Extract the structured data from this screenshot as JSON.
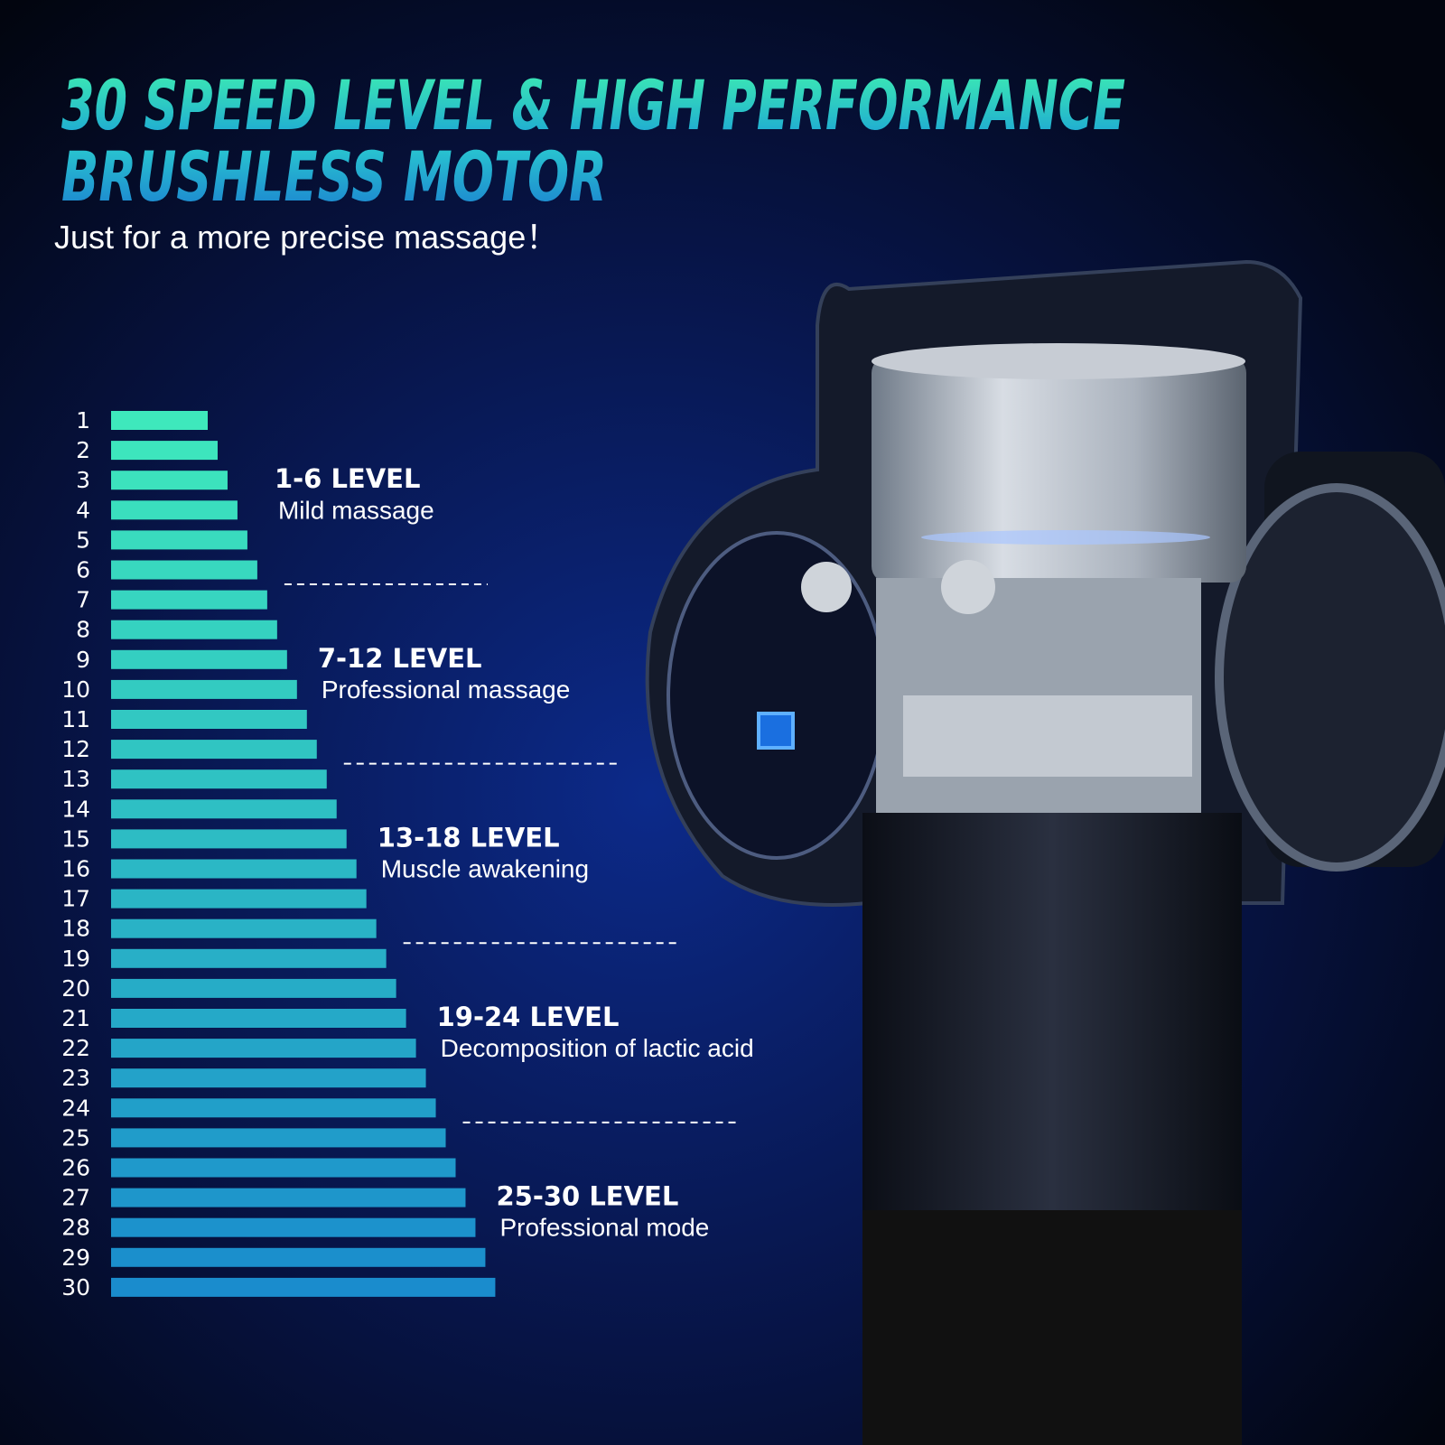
{
  "title": {
    "line1": "30 SPEED LEVEL & HIGH PERFORMANCE",
    "line2": "BRUSHLESS MOTOR"
  },
  "subtitle": "Just for a more precise massage！",
  "levels": [
    1,
    2,
    3,
    4,
    5,
    6,
    7,
    8,
    9,
    10,
    11,
    12,
    13,
    14,
    15,
    16,
    17,
    18,
    19,
    20,
    21,
    22,
    23,
    24,
    25,
    26,
    27,
    28,
    29,
    30
  ],
  "groups": [
    {
      "range": "1-6 LEVEL",
      "description": "Mild massage"
    },
    {
      "range": "7-12 LEVEL",
      "description": "Professional massage"
    },
    {
      "range": "13-18 LEVEL",
      "description": "Muscle awakening"
    },
    {
      "range": "19-24 LEVEL",
      "description": "Decomposition of lactic acid"
    },
    {
      "range": "25-30 LEVEL",
      "description": "Professional mode"
    }
  ]
}
